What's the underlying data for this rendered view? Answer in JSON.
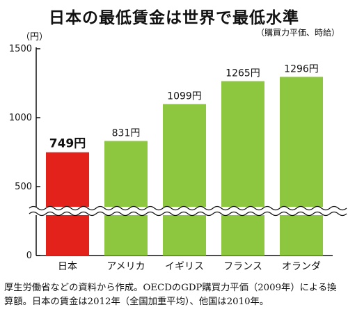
{
  "chart_data": {
    "type": "bar",
    "title": "日本の最低賃金は世界で最低水準",
    "subtitle": "（購買力平価、時給）",
    "unit_label": "（円）",
    "categories": [
      "日本",
      "アメリカ",
      "イギリス",
      "フランス",
      "オランダ"
    ],
    "values": [
      749,
      831,
      1099,
      1265,
      1296
    ],
    "value_labels": [
      "749円",
      "831円",
      "1099円",
      "1265円",
      "1296円"
    ],
    "ylim": [
      0,
      1500
    ],
    "yticks": [
      0,
      500,
      1000,
      1500
    ],
    "axis_break": true,
    "colors": [
      "#e3231b",
      "#8dc63f",
      "#8dc63f",
      "#8dc63f",
      "#8dc63f"
    ],
    "grid": false
  },
  "caption": "厚生労働省などの資料から作成。OECDのGDP購買力平価（2009年）による換算額。日本の賃金は2012年（全国加重平均）、他国は2010年。"
}
